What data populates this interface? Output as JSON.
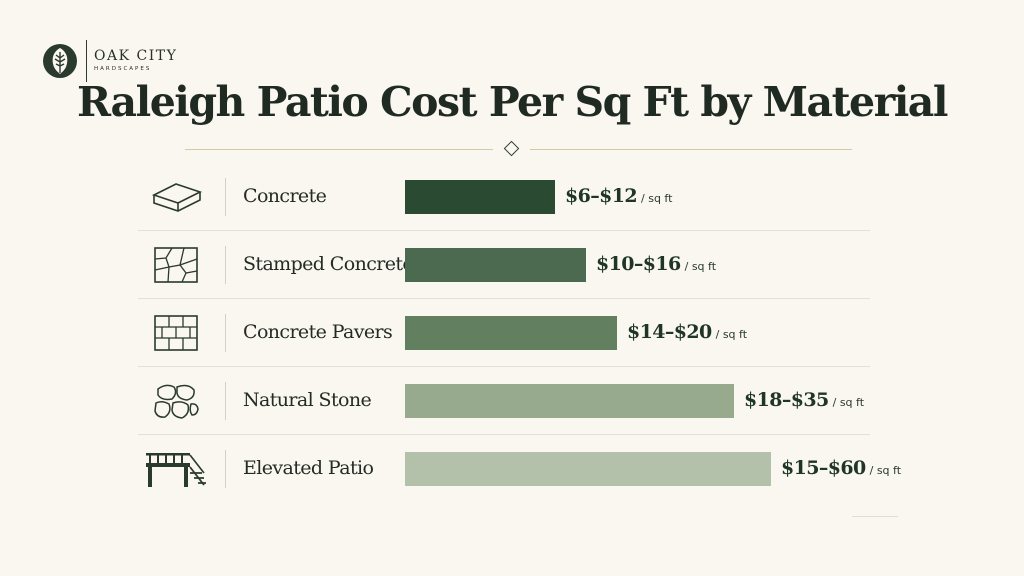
{
  "brand": {
    "name": "OAK CITY",
    "sub": "HARDSCAPES",
    "logo_icon": "oak-leaf-circle-icon"
  },
  "colors": {
    "background": "#faf6f0",
    "title": "#1f2a22",
    "accent_rule": "#d9c8a6",
    "bars": [
      "#2b4a32",
      "#4b6a50",
      "#62805f",
      "#97aa8d",
      "#b4c1aa"
    ]
  },
  "chart_data": {
    "type": "bar",
    "orientation": "horizontal",
    "title": "Raleigh Patio Cost Per Sq Ft by Material",
    "unit": "/ sq ft",
    "categories": [
      "Concrete",
      "Stamped Concrete",
      "Concrete Pavers",
      "Natural Stone",
      "Elevated Patio"
    ],
    "value_labels": [
      "$6–$12",
      "$10–$16",
      "$14–$20",
      "$18–$35",
      "$15–$60"
    ],
    "ranges": [
      [
        6,
        12
      ],
      [
        10,
        16
      ],
      [
        14,
        20
      ],
      [
        18,
        35
      ],
      [
        15,
        60
      ]
    ],
    "bar_values": [
      12,
      16,
      20,
      35,
      60
    ],
    "icons": [
      "concrete-slab-icon",
      "stamped-concrete-icon",
      "concrete-pavers-icon",
      "natural-stone-icon",
      "elevated-patio-icon"
    ],
    "xlim": [
      0,
      60
    ],
    "grid": false,
    "legend": "none"
  }
}
